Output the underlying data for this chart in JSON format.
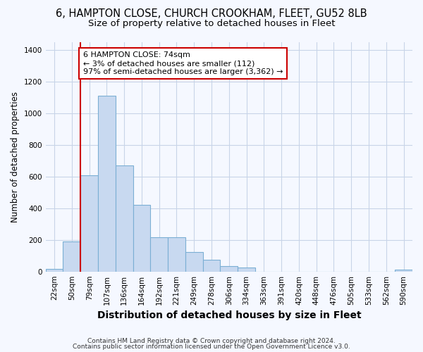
{
  "title1": "6, HAMPTON CLOSE, CHURCH CROOKHAM, FLEET, GU52 8LB",
  "title2": "Size of property relative to detached houses in Fleet",
  "xlabel": "Distribution of detached houses by size in Fleet",
  "ylabel": "Number of detached properties",
  "bin_labels": [
    "22sqm",
    "50sqm",
    "79sqm",
    "107sqm",
    "136sqm",
    "164sqm",
    "192sqm",
    "221sqm",
    "249sqm",
    "278sqm",
    "306sqm",
    "334sqm",
    "363sqm",
    "391sqm",
    "420sqm",
    "448sqm",
    "476sqm",
    "505sqm",
    "533sqm",
    "562sqm",
    "590sqm"
  ],
  "bar_heights": [
    15,
    190,
    610,
    1110,
    670,
    420,
    215,
    215,
    125,
    75,
    35,
    25,
    0,
    0,
    0,
    0,
    0,
    0,
    0,
    0,
    10
  ],
  "bar_color": "#c8d9f0",
  "bar_edge_color": "#7bafd4",
  "vline_color": "#cc0000",
  "annotation_text": "6 HAMPTON CLOSE: 74sqm\n← 3% of detached houses are smaller (112)\n97% of semi-detached houses are larger (3,362) →",
  "annotation_box_color": "#ffffff",
  "annotation_box_edge_color": "#cc0000",
  "ylim": [
    0,
    1450
  ],
  "yticks": [
    0,
    200,
    400,
    600,
    800,
    1000,
    1200,
    1400
  ],
  "footnote1": "Contains HM Land Registry data © Crown copyright and database right 2024.",
  "footnote2": "Contains public sector information licensed under the Open Government Licence v3.0.",
  "bg_color": "#f5f8ff",
  "grid_color": "#c8d4e8",
  "title1_fontsize": 10.5,
  "title2_fontsize": 9.5,
  "ylabel_fontsize": 8.5,
  "xlabel_fontsize": 10,
  "tick_fontsize": 7.5,
  "annot_fontsize": 8,
  "footnote_fontsize": 6.5
}
